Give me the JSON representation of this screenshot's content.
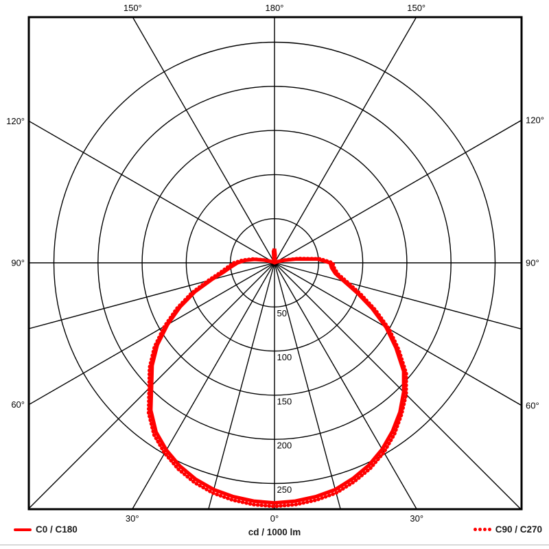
{
  "chart_data": {
    "type": "polar-line",
    "description": "Photometric luminous intensity distribution (polar candela plot)",
    "units_label": "cd / 1000 lm",
    "ring_values": [
      50,
      100,
      150,
      200,
      250
    ],
    "ring_unit_step": 50,
    "radial_line_angles": [
      -150,
      -120,
      -90,
      -75,
      -60,
      -45,
      -30,
      -15,
      0,
      15,
      30,
      45,
      60,
      75,
      90,
      120,
      150,
      180
    ],
    "angle_labels": [
      {
        "text": "180°",
        "angle": 180
      },
      {
        "text": "150°",
        "angle": -150
      },
      {
        "text": "150°",
        "angle": 150
      },
      {
        "text": "120°",
        "angle": -120
      },
      {
        "text": "120°",
        "angle": 120
      },
      {
        "text": "90°",
        "angle": -90
      },
      {
        "text": "90°",
        "angle": 90
      },
      {
        "text": "60°",
        "angle": -60
      },
      {
        "text": "60°",
        "angle": 60
      },
      {
        "text": "30°",
        "angle": -30
      },
      {
        "text": "30°",
        "angle": 30
      },
      {
        "text": "0°",
        "angle": 0
      }
    ],
    "series": [
      {
        "name": "C0 / C180",
        "style": "solid",
        "color": "#ff0000",
        "points": [
          [
            -180,
            16
          ],
          [
            -175,
            13
          ],
          [
            -170,
            4
          ],
          [
            -165,
            1
          ],
          [
            -160,
            0
          ],
          [
            -155,
            0
          ],
          [
            -150,
            0
          ],
          [
            -145,
            0
          ],
          [
            -140,
            0
          ],
          [
            -135,
            0
          ],
          [
            -130,
            0
          ],
          [
            -125,
            0
          ],
          [
            -120,
            1
          ],
          [
            -115,
            2
          ],
          [
            -110,
            5
          ],
          [
            -105,
            12
          ],
          [
            -100,
            23
          ],
          [
            -95,
            33
          ],
          [
            -90,
            42
          ],
          [
            -85,
            49
          ],
          [
            -80,
            58
          ],
          [
            -75,
            74
          ],
          [
            -70,
            96
          ],
          [
            -65,
            118
          ],
          [
            -60,
            140
          ],
          [
            -55,
            162
          ],
          [
            -50,
            181
          ],
          [
            -45,
            197
          ],
          [
            -40,
            218
          ],
          [
            -35,
            234
          ],
          [
            -30,
            245
          ],
          [
            -25,
            254
          ],
          [
            -20,
            261
          ],
          [
            -15,
            266
          ],
          [
            -10,
            269
          ],
          [
            -5,
            271
          ],
          [
            0,
            272
          ],
          [
            5,
            271
          ],
          [
            10,
            269
          ],
          [
            15,
            266
          ],
          [
            20,
            260
          ],
          [
            25,
            253
          ],
          [
            30,
            244
          ],
          [
            35,
            233
          ],
          [
            40,
            221
          ],
          [
            45,
            207
          ],
          [
            50,
            191
          ],
          [
            55,
            168
          ],
          [
            60,
            146
          ],
          [
            65,
            122
          ],
          [
            70,
            100
          ],
          [
            75,
            82
          ],
          [
            80,
            70
          ],
          [
            85,
            65
          ],
          [
            90,
            63
          ],
          [
            95,
            49
          ],
          [
            100,
            25
          ],
          [
            105,
            11
          ],
          [
            110,
            4
          ],
          [
            115,
            1
          ],
          [
            120,
            0
          ],
          [
            125,
            0
          ],
          [
            130,
            0
          ],
          [
            135,
            0
          ],
          [
            140,
            0
          ],
          [
            145,
            0
          ],
          [
            150,
            0
          ],
          [
            155,
            0
          ],
          [
            160,
            0
          ],
          [
            165,
            0
          ],
          [
            170,
            2
          ],
          [
            175,
            9
          ],
          [
            180,
            16
          ]
        ]
      },
      {
        "name": "C90 / C270",
        "style": "dotted",
        "color": "#ff0000",
        "points": [
          [
            -180,
            14
          ],
          [
            -175,
            11
          ],
          [
            -170,
            3
          ],
          [
            -165,
            0
          ],
          [
            -160,
            0
          ],
          [
            -155,
            0
          ],
          [
            -150,
            0
          ],
          [
            -145,
            0
          ],
          [
            -140,
            0
          ],
          [
            -135,
            0
          ],
          [
            -130,
            0
          ],
          [
            -125,
            0
          ],
          [
            -120,
            1
          ],
          [
            -115,
            3
          ],
          [
            -110,
            6
          ],
          [
            -105,
            13
          ],
          [
            -100,
            25
          ],
          [
            -95,
            36
          ],
          [
            -90,
            46
          ],
          [
            -85,
            53
          ],
          [
            -80,
            62
          ],
          [
            -75,
            78
          ],
          [
            -70,
            100
          ],
          [
            -65,
            122
          ],
          [
            -60,
            144
          ],
          [
            -55,
            166
          ],
          [
            -50,
            185
          ],
          [
            -45,
            201
          ],
          [
            -40,
            222
          ],
          [
            -35,
            238
          ],
          [
            -30,
            249
          ],
          [
            -25,
            258
          ],
          [
            -20,
            265
          ],
          [
            -15,
            270
          ],
          [
            -10,
            273
          ],
          [
            -5,
            275
          ],
          [
            0,
            276
          ],
          [
            5,
            275
          ],
          [
            10,
            273
          ],
          [
            15,
            270
          ],
          [
            20,
            264
          ],
          [
            25,
            257
          ],
          [
            30,
            248
          ],
          [
            35,
            237
          ],
          [
            40,
            224
          ],
          [
            45,
            211
          ],
          [
            50,
            195
          ],
          [
            55,
            172
          ],
          [
            60,
            150
          ],
          [
            65,
            126
          ],
          [
            70,
            104
          ],
          [
            75,
            86
          ],
          [
            80,
            73
          ],
          [
            85,
            68
          ],
          [
            90,
            66
          ],
          [
            95,
            52
          ],
          [
            100,
            28
          ],
          [
            105,
            13
          ],
          [
            110,
            5
          ],
          [
            115,
            1
          ],
          [
            120,
            0
          ],
          [
            125,
            0
          ],
          [
            130,
            0
          ],
          [
            135,
            0
          ],
          [
            140,
            0
          ],
          [
            145,
            0
          ],
          [
            150,
            0
          ],
          [
            155,
            0
          ],
          [
            160,
            0
          ],
          [
            165,
            0
          ],
          [
            170,
            2
          ],
          [
            175,
            8
          ],
          [
            180,
            14
          ]
        ]
      }
    ],
    "legend": [
      {
        "label": "C0 / C180",
        "style": "solid"
      },
      {
        "label": "C90 / C270",
        "style": "dotted"
      }
    ],
    "grid_color": "#000000",
    "separator_color": "#d8d8d8"
  }
}
